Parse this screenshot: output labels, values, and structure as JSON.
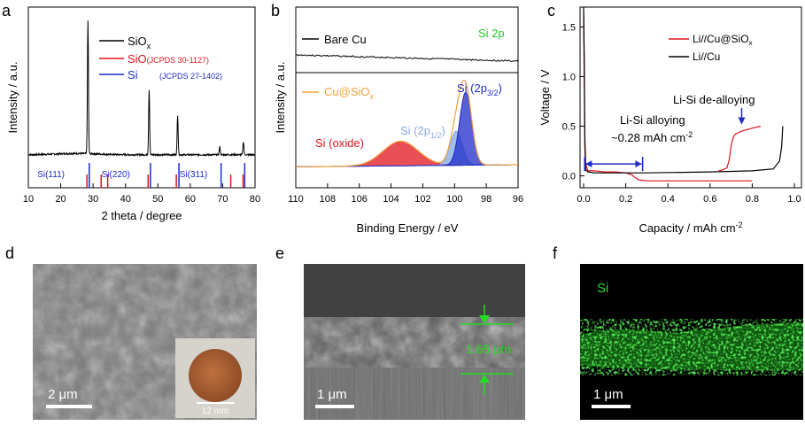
{
  "panels": {
    "a": "a",
    "b": "b",
    "c": "c",
    "d": "d",
    "e": "e",
    "f": "f"
  },
  "colors": {
    "black": "#000000",
    "red": "#e0141b",
    "blue": "#1f2bc8",
    "orange": "#f2a23a",
    "lightblue": "#86a8e6",
    "green": "#22dd22"
  },
  "chart_data": [
    {
      "panel": "a",
      "type": "line",
      "xlabel": "2 theta / degree",
      "ylabel": "Intensity / a.u.",
      "xlim": [
        10,
        80
      ],
      "xticks": [
        "10",
        "20",
        "30",
        "40",
        "50",
        "60",
        "70",
        "80"
      ],
      "legend": [
        {
          "name_main": "SiO",
          "name_sub": "x",
          "color": "#000000"
        },
        {
          "name_main": "SiO",
          "ref": "(JCPDS 30-1127)",
          "color": "#e0141b"
        },
        {
          "name_main": "Si",
          "ref": "(JCPDS 27-1402)",
          "color": "#1f2bc8"
        }
      ],
      "peaks_xrd": [
        {
          "x": 28.4,
          "height": 1.0
        },
        {
          "x": 47.3,
          "height": 0.49
        },
        {
          "x": 56.1,
          "height": 0.3
        },
        {
          "x": 69.1,
          "height": 0.06
        },
        {
          "x": 76.4,
          "height": 0.1
        }
      ],
      "ref_SiO": [
        28.1,
        32.5,
        34.5,
        47.0,
        55.7,
        72.5,
        76.3
      ],
      "ref_Si": [
        28.4,
        47.3,
        56.1,
        69.1,
        76.4
      ],
      "annotations": [
        {
          "text": "Si(111)",
          "x": 17
        },
        {
          "text": "Si(220)",
          "x": 37
        },
        {
          "text": "Si(311)",
          "x": 61
        }
      ]
    },
    {
      "panel": "b",
      "type": "line",
      "title": "Si 2p",
      "xlabel": "Binding Energy / eV",
      "ylabel": "Intensity / a.u.",
      "xlim": [
        110,
        96
      ],
      "xticks": [
        "110",
        "108",
        "106",
        "104",
        "102",
        "100",
        "98",
        "96"
      ],
      "bare_label": "Bare Cu",
      "coated_label_main": "Cu@SiO",
      "coated_label_sub": "x",
      "components": [
        {
          "label": "Si (oxide)",
          "center": 103.4,
          "height": 0.33,
          "fwhm": 2.6,
          "color": "#e0141b"
        },
        {
          "label_main": "Si (2p",
          "label_sub": "1/2",
          "label_end": ")",
          "center": 99.9,
          "height": 0.46,
          "fwhm": 0.9,
          "color": "#86a8e6"
        },
        {
          "label_main": "Si (2p",
          "label_sub": "3/2",
          "label_end": ")",
          "center": 99.3,
          "height": 0.98,
          "fwhm": 0.9,
          "color": "#1f2bc8"
        }
      ]
    },
    {
      "panel": "c",
      "type": "line",
      "xlabel": "Capacity / mAh cm",
      "xlabel_sup": "-2",
      "ylabel": "Voltage / V",
      "xlim": [
        0,
        1.0
      ],
      "ylim": [
        -0.12,
        1.7
      ],
      "xticks": [
        "0.0",
        "0.2",
        "0.4",
        "0.6",
        "0.8",
        "1.0"
      ],
      "yticks": [
        "0.0",
        "0.5",
        "1.0",
        "1.5"
      ],
      "series": [
        {
          "name_main": "Li//Cu@SiO",
          "name_sub": "x",
          "color": "#e0141b",
          "x": [
            0.0,
            0.003,
            0.006,
            0.01,
            0.02,
            0.05,
            0.1,
            0.15,
            0.2,
            0.23,
            0.24,
            0.26,
            0.3,
            0.5,
            0.7,
            0.8
          ],
          "y": [
            1.65,
            1.0,
            0.4,
            0.12,
            0.05,
            0.05,
            0.04,
            0.04,
            0.03,
            0.01,
            -0.01,
            -0.04,
            -0.05,
            -0.05,
            -0.05,
            -0.05
          ]
        },
        {
          "name": "Li//Cu",
          "color": "#000000",
          "x": [
            0.0,
            0.003,
            0.006,
            0.01,
            0.02,
            0.05,
            0.3,
            0.6,
            0.8,
            0.9,
            0.93,
            0.94,
            0.945
          ],
          "y": [
            1.7,
            1.2,
            0.3,
            0.06,
            0.04,
            0.03,
            0.03,
            0.04,
            0.05,
            0.07,
            0.15,
            0.3,
            0.5
          ]
        },
        {
          "name": "red-delithiation",
          "color": "#e0141b",
          "x": [
            0.64,
            0.66,
            0.68,
            0.69,
            0.7,
            0.71,
            0.72,
            0.75,
            0.8,
            0.84
          ],
          "y": [
            0.05,
            0.06,
            0.08,
            0.15,
            0.3,
            0.39,
            0.42,
            0.45,
            0.48,
            0.5
          ]
        }
      ],
      "annotations": {
        "alloying_1": "Li-Si alloying",
        "alloying_2": "~0.28 mAh cm",
        "alloying_sup": "-2",
        "dealloying": "Li-Si de-alloying"
      }
    }
  ],
  "images": {
    "d": {
      "scale_bar": "2 μm",
      "inset_scale": "12 mm"
    },
    "e": {
      "thickness": "1.65 μm",
      "scale_bar": "1 μm"
    },
    "f": {
      "element": "Si",
      "scale_bar": "1 μm"
    }
  }
}
